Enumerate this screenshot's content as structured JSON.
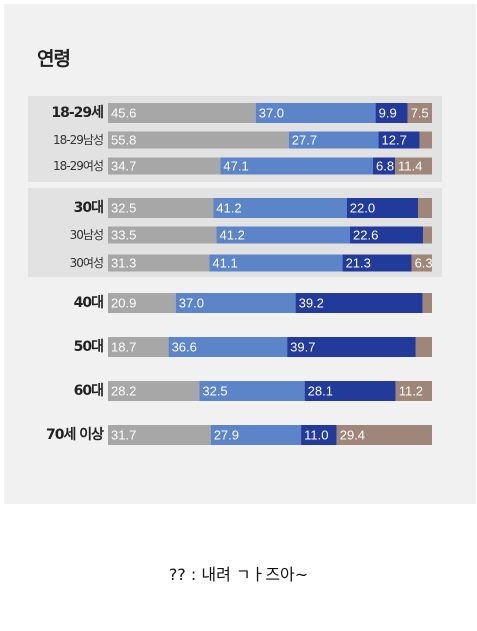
{
  "page": {
    "caption": "?? : 내려 ㄱㅏ즈아~"
  },
  "chart_data": {
    "type": "bar",
    "orientation": "horizontal",
    "stacked": true,
    "title": "연령",
    "colors": [
      "#a7a7a7",
      "#5b84c9",
      "#223a99",
      "#a08679"
    ],
    "rows": [
      {
        "label": "18-29세",
        "style": "main",
        "values": [
          45.6,
          37.0,
          9.9,
          7.5
        ],
        "labels": [
          "45.6",
          "37.0",
          "9.9",
          "7.5"
        ]
      },
      {
        "label": "18-29남성",
        "style": "sub",
        "values": [
          55.8,
          27.7,
          12.7,
          3.8
        ],
        "labels": [
          "55.8",
          "27.7",
          "12.7",
          ""
        ]
      },
      {
        "label": "18-29여성",
        "style": "sub",
        "values": [
          34.7,
          47.1,
          6.8,
          11.4
        ],
        "labels": [
          "34.7",
          "47.1",
          "6.8",
          "11.4"
        ]
      },
      {
        "label": "30대",
        "style": "main",
        "values": [
          32.5,
          41.2,
          22.0,
          4.3
        ],
        "labels": [
          "32.5",
          "41.2",
          "22.0",
          ""
        ]
      },
      {
        "label": "30남성",
        "style": "sub",
        "values": [
          33.5,
          41.2,
          22.6,
          2.7
        ],
        "labels": [
          "33.5",
          "41.2",
          "22.6",
          ""
        ]
      },
      {
        "label": "30여성",
        "style": "sub",
        "values": [
          31.3,
          41.1,
          21.3,
          6.3
        ],
        "labels": [
          "31.3",
          "41.1",
          "21.3",
          "6.3"
        ]
      },
      {
        "label": "40대",
        "style": "main",
        "values": [
          20.9,
          37.0,
          39.2,
          2.9
        ],
        "labels": [
          "20.9",
          "37.0",
          "39.2",
          ""
        ]
      },
      {
        "label": "50대",
        "style": "main",
        "values": [
          18.7,
          36.6,
          39.7,
          5.0
        ],
        "labels": [
          "18.7",
          "36.6",
          "39.7",
          ""
        ]
      },
      {
        "label": "60대",
        "style": "main",
        "values": [
          28.2,
          32.5,
          28.1,
          11.2
        ],
        "labels": [
          "28.2",
          "32.5",
          "28.1",
          "11.2"
        ]
      },
      {
        "label": "70세 이상",
        "style": "main",
        "values": [
          31.7,
          27.9,
          11.0,
          29.4
        ],
        "labels": [
          "31.7",
          "27.9",
          "11.0",
          "29.4"
        ]
      }
    ]
  }
}
